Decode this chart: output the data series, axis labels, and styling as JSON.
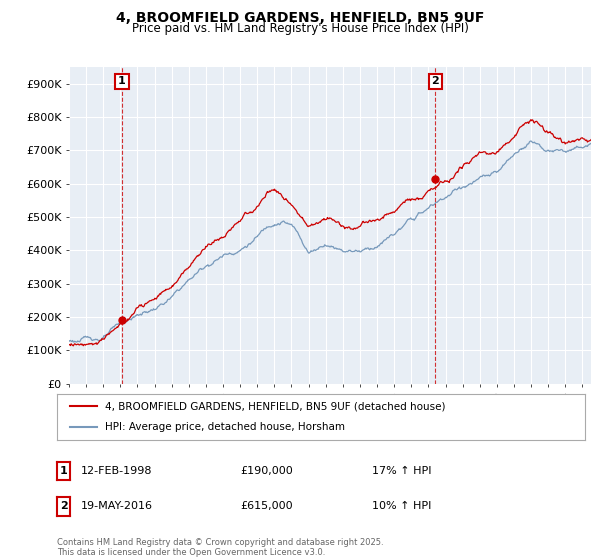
{
  "title_line1": "4, BROOMFIELD GARDENS, HENFIELD, BN5 9UF",
  "title_line2": "Price paid vs. HM Land Registry's House Price Index (HPI)",
  "ylim": [
    0,
    950000
  ],
  "yticks": [
    0,
    100000,
    200000,
    300000,
    400000,
    500000,
    600000,
    700000,
    800000,
    900000
  ],
  "ytick_labels": [
    "£0",
    "£100K",
    "£200K",
    "£300K",
    "£400K",
    "£500K",
    "£600K",
    "£700K",
    "£800K",
    "£900K"
  ],
  "sale1_date": "12-FEB-1998",
  "sale1_price": 190000,
  "sale1_pct": "17% ↑ HPI",
  "sale1_label": "1",
  "sale1_year": 1998.1,
  "sale2_date": "19-MAY-2016",
  "sale2_price": 615000,
  "sale2_pct": "10% ↑ HPI",
  "sale2_label": "2",
  "sale2_year": 2016.4,
  "legend_line1": "4, BROOMFIELD GARDENS, HENFIELD, BN5 9UF (detached house)",
  "legend_line2": "HPI: Average price, detached house, Horsham",
  "footer": "Contains HM Land Registry data © Crown copyright and database right 2025.\nThis data is licensed under the Open Government Licence v3.0.",
  "line_color_red": "#cc0000",
  "line_color_blue": "#7799bb",
  "background_color": "#ffffff",
  "plot_bg_color": "#e8eef5",
  "grid_color": "#ffffff"
}
